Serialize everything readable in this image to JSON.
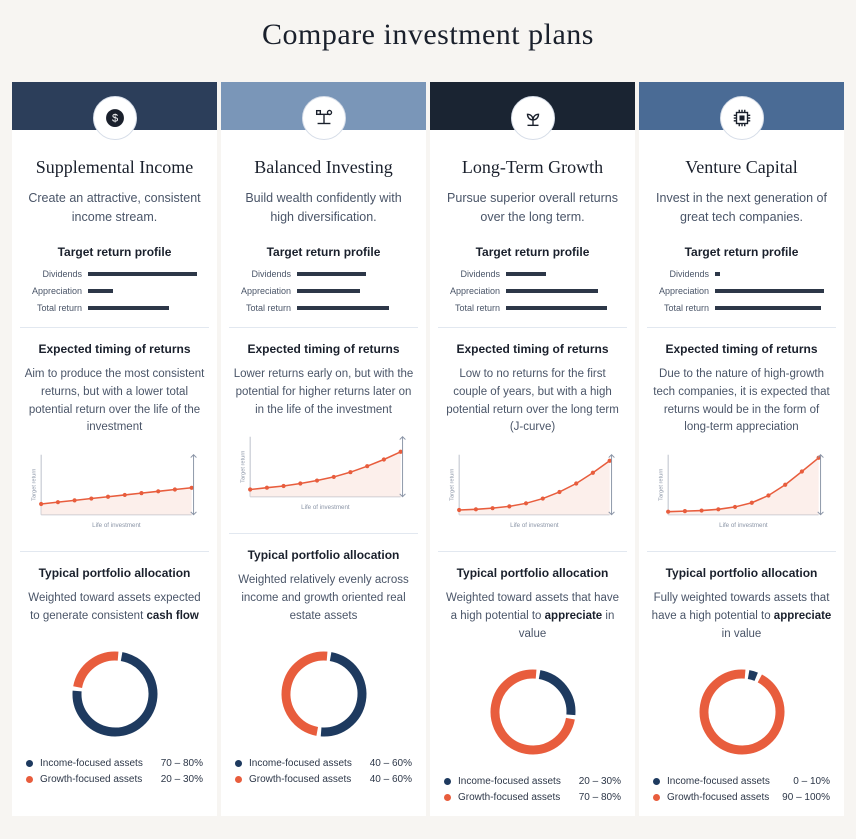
{
  "title": "Compare investment plans",
  "colors": {
    "income": "#1e3a5f",
    "growth": "#e85d3d",
    "chart_line": "#e85d3d",
    "chart_fill": "#fbe8e3",
    "chart_axis": "#b8bec8",
    "chart_arrow": "#8a94a6",
    "bar": "#2d3748",
    "header_1": "#2c3e5a",
    "header_2": "#7a96b8",
    "header_3": "#1a2432",
    "header_4": "#4a6b95"
  },
  "labels": {
    "target_profile": "Target return profile",
    "dividends": "Dividends",
    "appreciation": "Appreciation",
    "total_return": "Total return",
    "timing": "Expected timing of returns",
    "allocation": "Typical portfolio allocation",
    "income_assets": "Income-focused assets",
    "growth_assets": "Growth-focused assets",
    "chart_y": "Target return",
    "chart_x": "Life of investment"
  },
  "plans": [
    {
      "name": "Supplemental Income",
      "icon": "dollar",
      "header_color": "#2c3e5a",
      "tagline": "Create an attractive, consistent income stream.",
      "profile": {
        "dividends": 0.95,
        "appreciation": 0.22,
        "total_return": 0.7
      },
      "timing_desc": "Aim to produce the most consistent returns, but with a lower total potential return over the life of the investment",
      "curve": [
        0.18,
        0.21,
        0.24,
        0.27,
        0.3,
        0.33,
        0.36,
        0.39,
        0.42,
        0.45
      ],
      "alloc_desc": "Weighted toward assets expected to generate consistent <b>cash flow</b>",
      "income_pct": 75,
      "income_range": "70 – 80%",
      "growth_pct": 25,
      "growth_range": "20 – 30%"
    },
    {
      "name": "Balanced Investing",
      "icon": "balance",
      "header_color": "#7a96b8",
      "tagline": "Build wealth confidently with high diversification.",
      "profile": {
        "dividends": 0.6,
        "appreciation": 0.55,
        "total_return": 0.8
      },
      "timing_desc": "Lower returns early on, but with the potential for higher returns later on in the life of the investment",
      "curve": [
        0.12,
        0.15,
        0.18,
        0.22,
        0.27,
        0.33,
        0.41,
        0.51,
        0.62,
        0.75
      ],
      "alloc_desc": "Weighted relatively evenly across income and growth oriented real estate assets",
      "income_pct": 50,
      "income_range": "40 – 60%",
      "growth_pct": 50,
      "growth_range": "40 – 60%"
    },
    {
      "name": "Long-Term Growth",
      "icon": "plant",
      "header_color": "#1a2432",
      "tagline": "Pursue superior overall returns over the long term.",
      "profile": {
        "dividends": 0.35,
        "appreciation": 0.8,
        "total_return": 0.88
      },
      "timing_desc": "Low to no returns for the first couple of years, but with a high potential return over the long term (J-curve)",
      "curve": [
        0.08,
        0.09,
        0.11,
        0.14,
        0.19,
        0.27,
        0.38,
        0.52,
        0.7,
        0.9
      ],
      "alloc_desc": "Weighted toward assets that have a high potential to <b>appreciate</b> in value",
      "income_pct": 25,
      "income_range": "20 – 30%",
      "growth_pct": 75,
      "growth_range": "70 – 80%"
    },
    {
      "name": "Venture Capital",
      "icon": "chip",
      "header_color": "#4a6b95",
      "tagline": "Invest in the next generation of great tech companies.",
      "profile": {
        "dividends": 0.04,
        "appreciation": 0.95,
        "total_return": 0.92
      },
      "timing_desc": "Due to the nature of high-growth tech companies, it is expected that returns would be in the form of long-term appreciation",
      "curve": [
        0.05,
        0.06,
        0.07,
        0.09,
        0.13,
        0.2,
        0.32,
        0.5,
        0.72,
        0.95
      ],
      "alloc_desc": "Fully weighted towards assets that have a high potential to <b>appreciate</b> in value",
      "income_pct": 5,
      "income_range": "0 – 10%",
      "growth_pct": 95,
      "growth_range": "90 – 100%"
    }
  ]
}
